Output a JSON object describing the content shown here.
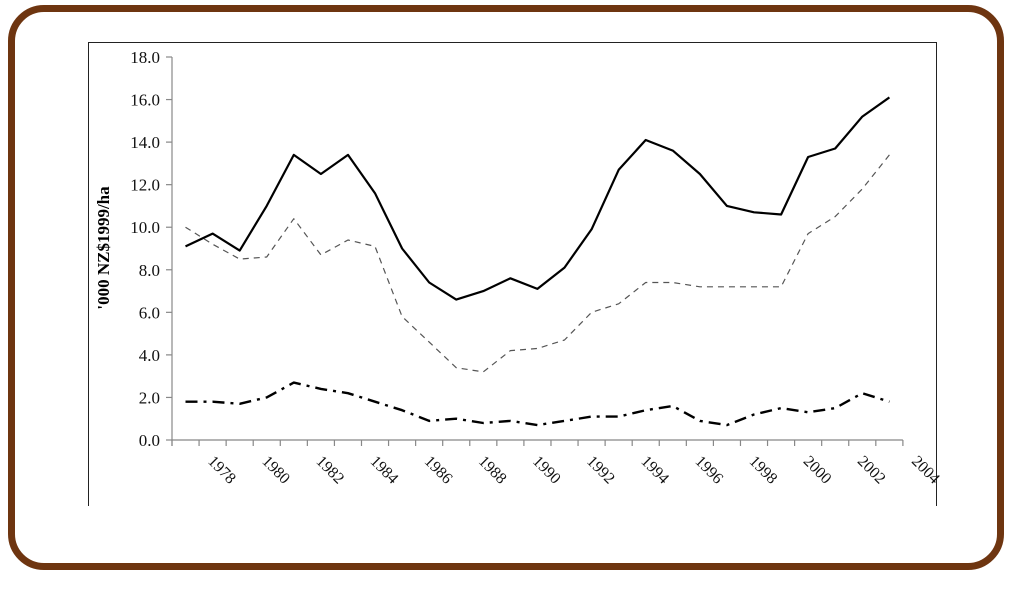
{
  "chart_data": {
    "type": "line",
    "title": "",
    "xlabel": "",
    "ylabel": "'000 NZ$1999/ha",
    "ylim": [
      0,
      18
    ],
    "yticks": [
      "0.0",
      "2.0",
      "4.0",
      "6.0",
      "8.0",
      "10.0",
      "12.0",
      "14.0",
      "16.0",
      "18.0"
    ],
    "xtick_labels": [
      "1978",
      "1980",
      "1982",
      "1984",
      "1986",
      "1988",
      "1990",
      "1992",
      "1994",
      "1996",
      "1998",
      "2000",
      "2002",
      "2004"
    ],
    "grid": false,
    "legend": null,
    "x": [
      1977,
      1978,
      1979,
      1980,
      1981,
      1982,
      1983,
      1984,
      1985,
      1986,
      1987,
      1988,
      1989,
      1990,
      1991,
      1992,
      1993,
      1994,
      1995,
      1996,
      1997,
      1998,
      1999,
      2000,
      2001,
      2002,
      2003
    ],
    "series": [
      {
        "name": "solid",
        "style": "solid",
        "values": [
          9.1,
          9.7,
          8.9,
          11.0,
          13.4,
          12.5,
          13.4,
          11.6,
          9.0,
          7.4,
          6.6,
          7.0,
          7.6,
          7.1,
          8.1,
          9.9,
          12.7,
          14.1,
          13.6,
          12.5,
          11.0,
          10.7,
          10.6,
          13.3,
          13.7,
          15.2,
          16.1
        ]
      },
      {
        "name": "dashed",
        "style": "dashed",
        "values": [
          10.0,
          9.2,
          8.5,
          8.6,
          10.4,
          8.7,
          9.4,
          9.1,
          5.8,
          4.6,
          3.4,
          3.2,
          4.2,
          4.3,
          4.7,
          6.0,
          6.4,
          7.4,
          7.4,
          7.2,
          7.2,
          7.2,
          7.2,
          9.7,
          10.5,
          11.8,
          13.4
        ]
      },
      {
        "name": "dash-dot",
        "style": "dashdot",
        "values": [
          1.8,
          1.8,
          1.7,
          2.0,
          2.7,
          2.4,
          2.2,
          1.8,
          1.4,
          0.9,
          1.0,
          0.8,
          0.9,
          0.7,
          0.9,
          1.1,
          1.1,
          1.4,
          1.6,
          0.9,
          0.7,
          1.2,
          1.5,
          1.3,
          1.5,
          2.2,
          1.8
        ]
      }
    ]
  },
  "colors": {
    "frame": "#6e3510",
    "line": "#000000",
    "dashed": "#555555",
    "axis": "#888888"
  }
}
